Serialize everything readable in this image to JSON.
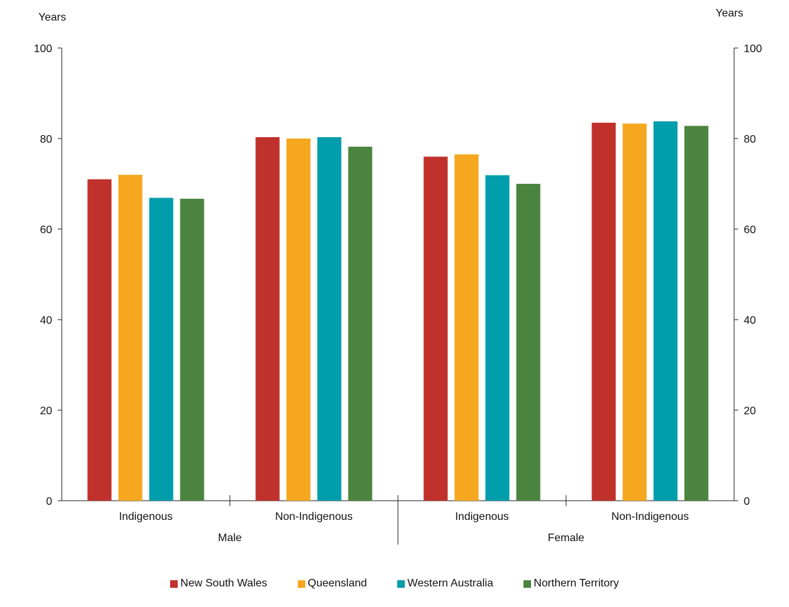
{
  "chart_data": {
    "type": "bar",
    "title": "",
    "ylabel_left": "Years",
    "ylabel_right": "Years",
    "ylim": [
      0,
      100
    ],
    "yticks": [
      0,
      20,
      40,
      60,
      80,
      100
    ],
    "groups": [
      {
        "name": "Male",
        "categories": [
          "Indigenous",
          "Non-Indigenous"
        ]
      },
      {
        "name": "Female",
        "categories": [
          "Indigenous",
          "Non-Indigenous"
        ]
      }
    ],
    "categories": [
      "Indigenous",
      "Non-Indigenous",
      "Indigenous",
      "Non-Indigenous"
    ],
    "series": [
      {
        "name": "New South Wales",
        "color": "#c0312b",
        "values": [
          71.0,
          80.3,
          76.0,
          83.5
        ]
      },
      {
        "name": "Queensland",
        "color": "#f5a71f",
        "values": [
          72.0,
          80.0,
          76.5,
          83.3
        ]
      },
      {
        "name": "Western Australia",
        "color": "#009dac",
        "values": [
          66.9,
          80.3,
          71.9,
          83.8
        ]
      },
      {
        "name": "Northern Territory",
        "color": "#4b843e",
        "values": [
          66.7,
          78.2,
          70.0,
          82.8
        ]
      }
    ],
    "legend_position": "bottom",
    "grid": false
  }
}
